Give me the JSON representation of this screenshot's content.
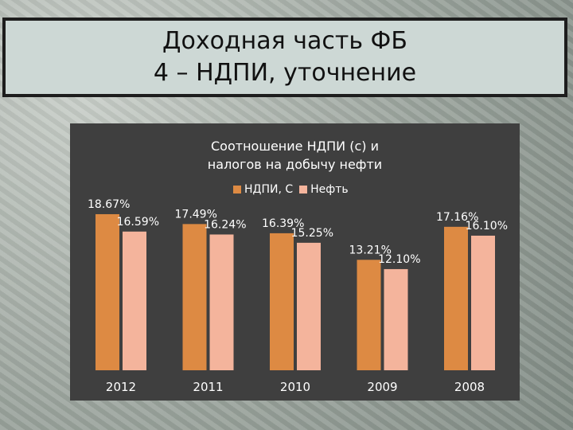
{
  "slide": {
    "title_line1": "Доходная часть ФБ",
    "title_line2": "4 – НДПИ, уточнение"
  },
  "colors": {
    "series1": "#dd8a43",
    "series2": "#f4b49c",
    "card_bg": "#3f3f3f"
  },
  "chart_data": {
    "type": "bar",
    "title": "Соотношение НДПИ (с) и налогов на добычу нефти",
    "title_line1": "Соотношение НДПИ (с) и",
    "title_line2": "налогов на добычу нефти",
    "legend_position": "top",
    "grid": false,
    "categories": [
      "2012",
      "2011",
      "2010",
      "2009",
      "2008"
    ],
    "series": [
      {
        "name": "НДПИ, С",
        "values": [
          18.67,
          17.49,
          16.39,
          13.21,
          17.16
        ],
        "labels": [
          "18.67%",
          "17.49%",
          "16.39%",
          "13.21%",
          "17.16%"
        ]
      },
      {
        "name": "Нефть",
        "values": [
          16.59,
          16.24,
          15.25,
          12.1,
          16.1
        ],
        "labels": [
          "16.59%",
          "16.24%",
          "15.25%",
          "12.10%",
          "16.10%"
        ]
      }
    ],
    "ylim": [
      0,
      20
    ]
  }
}
